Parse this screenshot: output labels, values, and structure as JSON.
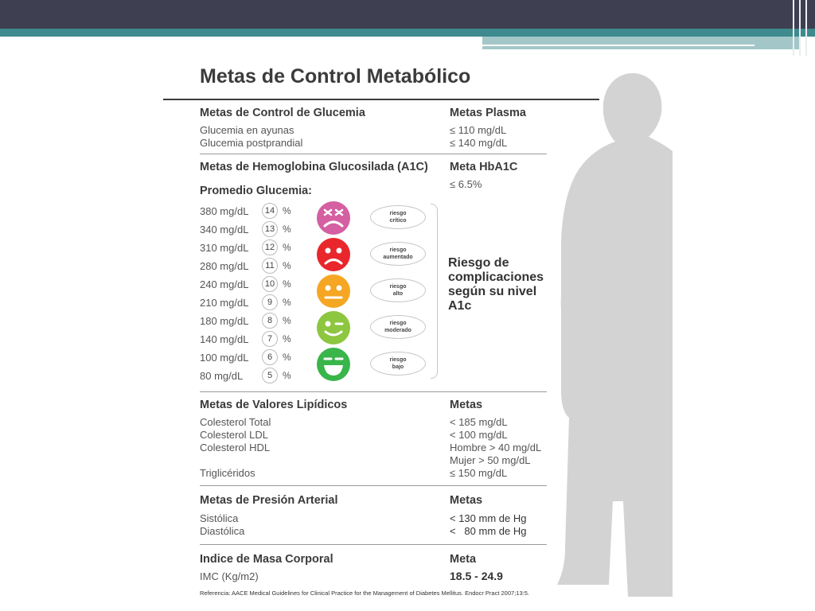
{
  "title": "Metas de Control Metabólico",
  "glucemia": {
    "header": "Metas de Control de Glucemia",
    "header_value": "Metas Plasma",
    "rows": [
      {
        "label": "Glucemia en ayunas",
        "value": "≤ 110 mg/dL"
      },
      {
        "label": "Glucemia postprandial",
        "value": "≤ 140 mg/dL"
      }
    ]
  },
  "a1c": {
    "header": "Metas de Hemoglobina Glucosilada (A1C)",
    "header_value": "Meta HbA1C",
    "target": "≤ 6.5%",
    "promedio_label": "Promedio Glucemia:",
    "pct_symbol": "%",
    "scale": [
      {
        "mg": "380 mg/dL",
        "a1c": "14"
      },
      {
        "mg": "340 mg/dL",
        "a1c": "13"
      },
      {
        "mg": "310 mg/dL",
        "a1c": "12"
      },
      {
        "mg": "280 mg/dL",
        "a1c": "11"
      },
      {
        "mg": "240 mg/dL",
        "a1c": "10"
      },
      {
        "mg": "210 mg/dL",
        "a1c": "9"
      },
      {
        "mg": "180 mg/dL",
        "a1c": "8"
      },
      {
        "mg": "140 mg/dL",
        "a1c": "7"
      },
      {
        "mg": "100 mg/dL",
        "a1c": "6"
      },
      {
        "mg": "80 mg/dL",
        "a1c": "5"
      }
    ],
    "risks": [
      {
        "line1": "riesgo",
        "line2": "crítico",
        "color": "#d45fa1"
      },
      {
        "line1": "riesgo",
        "line2": "aumentado",
        "color": "#e8262c"
      },
      {
        "line1": "riesgo",
        "line2": "alto",
        "color": "#f5a623"
      },
      {
        "line1": "riesgo",
        "line2": "moderado",
        "color": "#8dc63f"
      },
      {
        "line1": "riesgo",
        "line2": "bajo",
        "color": "#39b54a"
      }
    ],
    "risk_label": "Riesgo de complicaciones según su nivel A1c"
  },
  "lipidos": {
    "header": "Metas de Valores Lipídicos",
    "header_value": "Metas",
    "rows": [
      {
        "label": "Colesterol Total",
        "value": "< 185 mg/dL"
      },
      {
        "label": "Colesterol LDL",
        "value": "< 100 mg/dL"
      },
      {
        "label": "Colesterol HDL",
        "value": "Hombre > 40 mg/dL"
      },
      {
        "label": "",
        "value": "Mujer > 50 mg/dL"
      },
      {
        "label": "Triglicéridos",
        "value": "≤ 150 mg/dL"
      }
    ]
  },
  "presion": {
    "header": "Metas de Presión Arterial",
    "header_value": "Metas",
    "rows": [
      {
        "label": "Sistólica",
        "value": "< 130 mm de Hg"
      },
      {
        "label": "Diastólica",
        "value": "<   80 mm de Hg"
      }
    ]
  },
  "imc": {
    "header": "Indice de Masa Corporal",
    "header_value": "Meta",
    "label": "IMC (Kg/m2)",
    "value": "18.5 - 24.9"
  },
  "reference": "Referencia: AACE Medical Guidelines for Clinical Practice for the Management of Diabetes Mellitus. Endocr Pract 2007;13:5.",
  "colors": {
    "topbar": "#3e3f51",
    "teal": "#3f8a8e",
    "silhouette": "#d3d3d3"
  }
}
